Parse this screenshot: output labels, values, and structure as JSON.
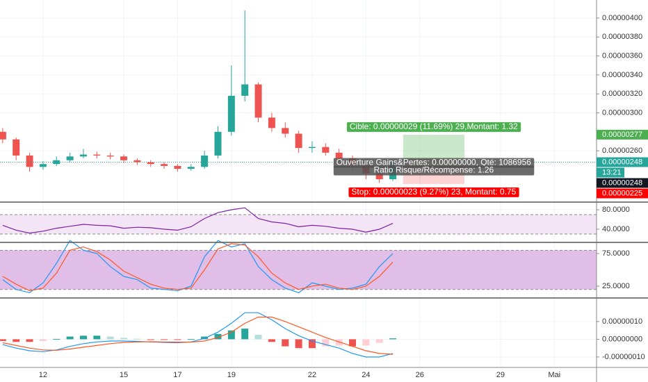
{
  "chart_data": [
    {
      "type": "candlestick",
      "x": [
        10.5,
        11,
        11.5,
        12,
        12.5,
        13,
        13.5,
        14,
        14.5,
        15,
        15.5,
        16,
        16.5,
        17,
        17.5,
        18,
        18.5,
        19,
        19.5,
        20,
        20.5,
        21,
        21.5,
        22,
        22.5,
        23,
        23.5,
        24,
        24.5,
        25
      ],
      "open": [
        2.8e-06,
        2.72e-06,
        2.55e-06,
        2.43e-06,
        2.46e-06,
        2.5e-06,
        2.54e-06,
        2.56e-06,
        2.55e-06,
        2.54e-06,
        2.5e-06,
        2.48e-06,
        2.46e-06,
        2.44e-06,
        2.41e-06,
        2.43e-06,
        2.55e-06,
        2.8e-06,
        3.18e-06,
        3.3e-06,
        2.95e-06,
        2.84e-06,
        2.78e-06,
        2.63e-06,
        2.64e-06,
        2.58e-06,
        2.52e-06,
        2.45e-06,
        2.36e-06,
        2.3e-06
      ],
      "high": [
        2.84e-06,
        2.74e-06,
        2.58e-06,
        2.49e-06,
        2.54e-06,
        2.58e-06,
        2.62e-06,
        2.59e-06,
        2.58e-06,
        2.56e-06,
        2.52e-06,
        2.5e-06,
        2.48e-06,
        2.46e-06,
        2.46e-06,
        2.6e-06,
        2.86e-06,
        3.5e-06,
        4.08e-06,
        3.32e-06,
        3e-06,
        2.9e-06,
        2.81e-06,
        2.7e-06,
        2.68e-06,
        2.62e-06,
        2.55e-06,
        2.48e-06,
        2.4e-06,
        2.5e-06
      ],
      "low": [
        2.68e-06,
        2.5e-06,
        2.38e-06,
        2.4e-06,
        2.44e-06,
        2.48e-06,
        2.52e-06,
        2.52e-06,
        2.51e-06,
        2.47e-06,
        2.45e-06,
        2.43e-06,
        2.41e-06,
        2.38e-06,
        2.39e-06,
        2.41e-06,
        2.52e-06,
        2.76e-06,
        3.12e-06,
        2.9e-06,
        2.8e-06,
        2.74e-06,
        2.58e-06,
        2.58e-06,
        2.55e-06,
        2.48e-06,
        2.4e-06,
        2.3e-06,
        2.26e-06,
        2.28e-06
      ],
      "close": [
        2.72e-06,
        2.55e-06,
        2.43e-06,
        2.46e-06,
        2.5e-06,
        2.54e-06,
        2.56e-06,
        2.55e-06,
        2.54e-06,
        2.5e-06,
        2.48e-06,
        2.46e-06,
        2.44e-06,
        2.41e-06,
        2.43e-06,
        2.55e-06,
        2.8e-06,
        3.18e-06,
        3.3e-06,
        2.95e-06,
        2.84e-06,
        2.78e-06,
        2.63e-06,
        2.64e-06,
        2.58e-06,
        2.52e-06,
        2.45e-06,
        2.36e-06,
        2.3e-06,
        2.48e-06
      ],
      "up_color": "#26a69a",
      "down_color": "#ef5350",
      "xlim": [
        10.4,
        32.57
      ],
      "xticks": [
        12,
        15,
        17,
        19,
        22,
        24,
        26,
        29,
        {
          "value": 31,
          "label": "Mai"
        }
      ],
      "ylim": [
        2.066e-06,
        4.19e-06
      ],
      "yticks": [
        {
          "value": 2.6e-06,
          "label": "0.00000260"
        },
        {
          "value": 3e-06,
          "label": "0.00000300"
        },
        {
          "value": 3.2e-06,
          "label": "0.00000320"
        },
        {
          "value": 3.4e-06,
          "label": "0.00000340"
        },
        {
          "value": 3.6e-06,
          "label": "0.00000360"
        },
        {
          "value": 3.8e-06,
          "label": "0.00000380"
        },
        {
          "value": 4e-06,
          "label": "0.00000400"
        }
      ],
      "last_price": 2.48e-06,
      "price_tags": [
        {
          "value": 2.77e-06,
          "label": "0.00000277",
          "color": "#4caf50"
        },
        {
          "value": 2.48e-06,
          "label": "0.00000248",
          "color": "#26a69a",
          "timer": "13:21"
        },
        {
          "value": 2.48e-06,
          "label": "0.00000248",
          "color": "#131722"
        },
        {
          "value": 2.25e-06,
          "label": "0.00000225",
          "color": "#f00"
        }
      ],
      "position": {
        "x_start": 25.38,
        "x_end": 27.66,
        "entry": 2.48e-06,
        "target": 2.77e-06,
        "stop": 2.25e-06,
        "target_label": "Cible: 0.00000029 (11.69%) 29,Montant: 1.32",
        "open_label": "Ouverture Gains&Pertes: 0.00000000, Qté: 1086956",
        "ratio_label": "Ratio Risque/Récompense: 1.26",
        "stop_label": "Stop: 0.00000023 (9.27%) 23, Montant: 0.75"
      }
    },
    {
      "type": "line",
      "series": [
        {
          "color": "#7b1fa2",
          "values": [
            48,
            38,
            32,
            36,
            42,
            46,
            50,
            48,
            47,
            42,
            44,
            43,
            40,
            38,
            45,
            62,
            74,
            80,
            84,
            62,
            55,
            52,
            45,
            48,
            46,
            42,
            40,
            34,
            40,
            52
          ]
        }
      ],
      "band": [
        30,
        70
      ],
      "band_color": "#f3e5f5",
      "ylim": [
        14.3,
        92.9
      ],
      "yticks": [
        {
          "value": 40,
          "label": "40.0000"
        },
        {
          "value": 80,
          "label": "80.0000"
        }
      ]
    },
    {
      "type": "line",
      "series": [
        {
          "color": "#2196f3",
          "values": [
            35,
            20,
            15,
            30,
            60,
            95,
            80,
            75,
            55,
            40,
            35,
            22,
            20,
            18,
            25,
            70,
            95,
            85,
            90,
            55,
            35,
            22,
            15,
            30,
            25,
            20,
            22,
            28,
            55,
            75
          ]
        },
        {
          "color": "#ff5722",
          "values": [
            40,
            28,
            18,
            22,
            45,
            80,
            85,
            78,
            65,
            48,
            38,
            28,
            22,
            20,
            22,
            50,
            82,
            90,
            88,
            70,
            45,
            30,
            20,
            25,
            28,
            22,
            20,
            25,
            40,
            62
          ]
        }
      ],
      "band": [
        20,
        80
      ],
      "band_color": "#e1bee7",
      "ylim": [
        8,
        91
      ],
      "yticks": [
        {
          "value": 25,
          "label": "25.0000"
        },
        {
          "value": 75,
          "label": "75.0000"
        }
      ]
    },
    {
      "type": "macd",
      "series": [
        {
          "color": "#2196f3",
          "values": [
            -3e-08,
            -5e-08,
            -6.5e-08,
            -7e-08,
            -6e-08,
            -4e-08,
            -2.5e-08,
            -1.5e-08,
            -1e-08,
            -1e-08,
            -1.2e-08,
            -1.5e-08,
            -1.8e-08,
            -2e-08,
            -1.5e-08,
            5e-09,
            4e-08,
            9e-08,
            1.5e-07,
            1.5e-07,
            1.1e-07,
            6e-08,
            2e-08,
            -1e-08,
            -3e-08,
            -5e-08,
            -8e-08,
            -1e-07,
            -1e-07,
            -8e-08
          ]
        },
        {
          "color": "#ff5722",
          "values": [
            -2e-08,
            -3.5e-08,
            -5e-08,
            -6e-08,
            -6.2e-08,
            -5.5e-08,
            -4.5e-08,
            -3.5e-08,
            -2.5e-08,
            -1.8e-08,
            -1.5e-08,
            -1.4e-08,
            -1.5e-08,
            -1.6e-08,
            -1.6e-08,
            -1e-08,
            1e-08,
            4e-08,
            9e-08,
            1.25e-07,
            1.25e-07,
            1e-07,
            7e-08,
            4e-08,
            1e-08,
            -1.5e-08,
            -4e-08,
            -6.5e-08,
            -8e-08,
            -8.5e-08
          ]
        }
      ],
      "histogram": [
        -1e-08,
        -1.5e-08,
        -1.5e-08,
        -1e-08,
        2e-09,
        1.5e-08,
        2e-08,
        2e-08,
        1.5e-08,
        8e-09,
        3e-09,
        -1e-09,
        -3e-09,
        -4e-09,
        1e-09,
        1.5e-08,
        3e-08,
        5e-08,
        6e-08,
        2.5e-08,
        -1.5e-08,
        -4e-08,
        -5e-08,
        -5e-08,
        -4e-08,
        -3.5e-08,
        -4e-08,
        -3.5e-08,
        -2e-08,
        5e-09
      ],
      "histogram_colors": [
        "#26a69a",
        "#b2dfdb",
        "#ef5350",
        "#ffcdd2"
      ],
      "ylim": [
        -1.55e-07,
        2.29e-07
      ],
      "yticks": [
        {
          "value": -1e-07,
          "label": "-0.00000010"
        },
        {
          "value": 0,
          "label": "0.00000000"
        },
        {
          "value": 1e-07,
          "label": "0.00000010"
        }
      ]
    }
  ]
}
